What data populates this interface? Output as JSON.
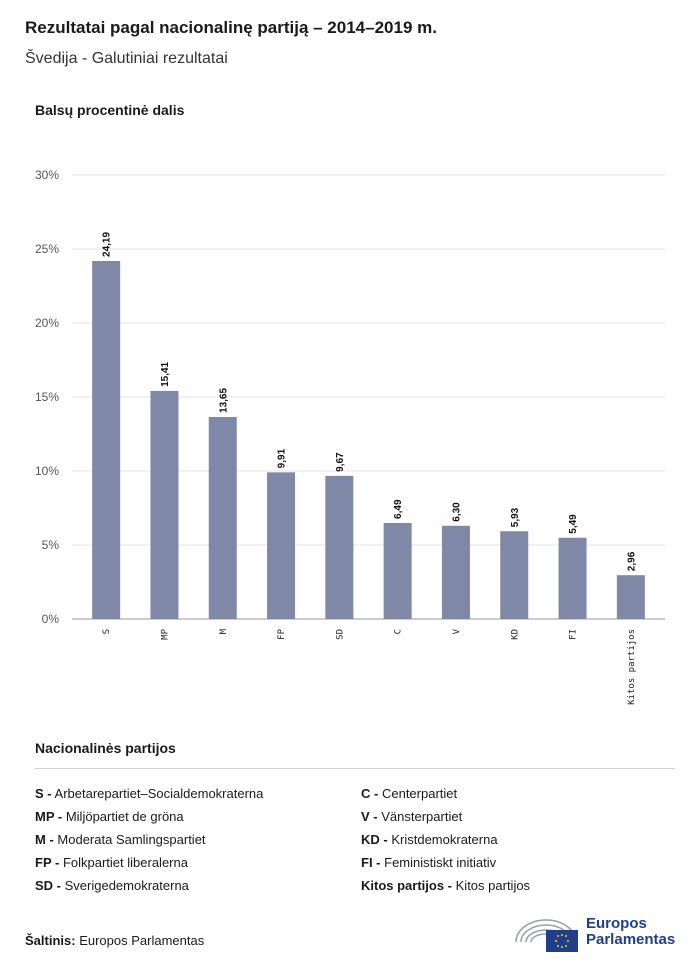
{
  "header": {
    "title": "Rezultatai pagal nacionalinę partiją – 2014–2019 m.",
    "subtitle": "Švedija - Galutiniai rezultatai"
  },
  "chart_data": {
    "type": "bar",
    "title": "Rezultatai pagal nacionalinę partiją – 2014–2019 m.",
    "subtitle": "Švedija - Galutiniai rezultatai",
    "ylabel": "Balsų procentinė dalis",
    "xlabel": "",
    "ylim": [
      0,
      30
    ],
    "yticks": [
      "0%",
      "5%",
      "10%",
      "15%",
      "20%",
      "25%",
      "30%"
    ],
    "grid": true,
    "categories": [
      "S",
      "MP",
      "M",
      "FP",
      "SD",
      "C",
      "V",
      "KD",
      "FI",
      "Kitos partijos"
    ],
    "values": [
      24.19,
      15.41,
      13.65,
      9.91,
      9.67,
      6.49,
      6.3,
      5.93,
      5.49,
      2.96
    ],
    "value_labels": [
      "24,19",
      "15,41",
      "13,65",
      "9,91",
      "9,67",
      "6,49",
      "6,30",
      "5,93",
      "5,49",
      "2,96"
    ],
    "bar_color": "#7f88a6"
  },
  "legend": {
    "title": "Nacionalinės partijos",
    "items": [
      {
        "code": "S -",
        "name": "Arbetarepartiet–Socialdemokraterna"
      },
      {
        "code": "MP -",
        "name": "Miljöpartiet de gröna"
      },
      {
        "code": "M -",
        "name": "Moderata Samlingspartiet"
      },
      {
        "code": "FP -",
        "name": "Folkpartiet liberalerna"
      },
      {
        "code": "SD -",
        "name": "Sverigedemokraterna"
      },
      {
        "code": "C -",
        "name": "Centerpartiet"
      },
      {
        "code": "V -",
        "name": "Vänsterpartiet"
      },
      {
        "code": "KD -",
        "name": "Kristdemokraterna"
      },
      {
        "code": "FI -",
        "name": "Feministiskt initiativ"
      },
      {
        "code": "Kitos partijos -",
        "name": "Kitos partijos"
      }
    ]
  },
  "source": {
    "label": "Šaltinis:",
    "text": "Europos Parlamentas"
  },
  "logo": {
    "line1": "Europos",
    "line2": "Parlamentas",
    "icon": "european-parliament-logo"
  }
}
